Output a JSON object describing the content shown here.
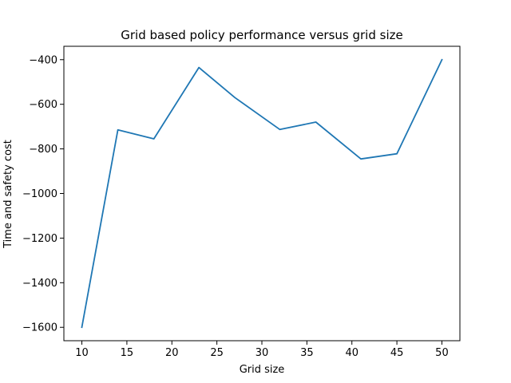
{
  "chart_data": {
    "type": "line",
    "title": "Grid based policy performance versus grid size",
    "xlabel": "Grid size",
    "ylabel": "Time and safety cost",
    "xlim": [
      8,
      52
    ],
    "ylim": [
      -1660,
      -340
    ],
    "xticks": [
      10,
      15,
      20,
      25,
      30,
      35,
      40,
      45,
      50
    ],
    "yticks": [
      -1600,
      -1400,
      -1200,
      -1000,
      -800,
      -600,
      -400
    ],
    "grid": false,
    "series": [
      {
        "color": "#1f77b4",
        "x": [
          10,
          14,
          18,
          23,
          27,
          32,
          36,
          41,
          45,
          50
        ],
        "y": [
          -1600,
          -715,
          -755,
          -435,
          -570,
          -713,
          -680,
          -845,
          -822,
          -400
        ]
      }
    ]
  }
}
